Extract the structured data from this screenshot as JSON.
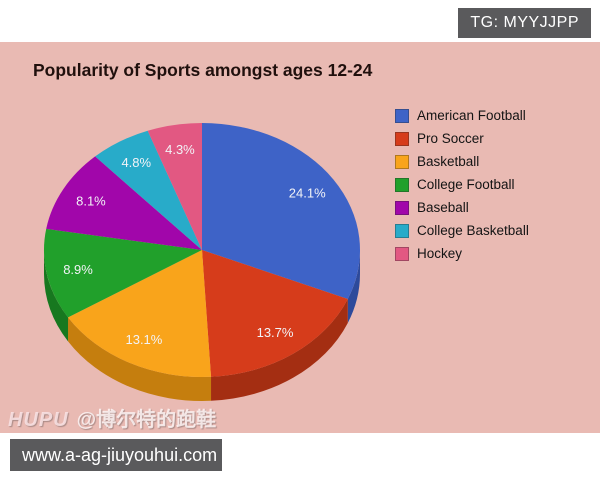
{
  "watermarks": {
    "telegram": "TG: MYYJJPP",
    "hupu_logo": "HUPU",
    "hupu_handle": "@博尔特的跑鞋",
    "site_url": "www.a-ag-jiuyouhui.com"
  },
  "colors": {
    "panel_background": "#e9bab3",
    "watermark_badge": "#5a5a5c",
    "watermark_bar": "#5a5a5c",
    "title_text": "#20100d",
    "legend_text": "#141414",
    "slice_label_text": "#f2f3f7"
  },
  "chart_data": {
    "type": "pie",
    "title": "Popularity of Sports amongst ages 12-24",
    "legend_position": "right",
    "style": "3d",
    "start_angle_deg": -90,
    "direction": "clockwise",
    "series": [
      {
        "label": "American Football",
        "value": 24.1,
        "percent_label": "24.1%",
        "color": "#3e63c7",
        "side_color": "#2d4a9b"
      },
      {
        "label": "Pro Soccer",
        "value": 13.7,
        "percent_label": "13.7%",
        "color": "#d63c1b",
        "side_color": "#a42e12"
      },
      {
        "label": "Basketball",
        "value": 13.1,
        "percent_label": "13.1%",
        "color": "#f9a41b",
        "side_color": "#c57e0e"
      },
      {
        "label": "College Football",
        "value": 8.9,
        "percent_label": "8.9%",
        "color": "#21a02b",
        "side_color": "#17781f"
      },
      {
        "label": "Baseball",
        "value": 8.1,
        "percent_label": "8.1%",
        "color": "#a106aa",
        "side_color": "#790880"
      },
      {
        "label": "College Basketball",
        "value": 4.8,
        "percent_label": "4.8%",
        "color": "#28abc9",
        "side_color": "#1e8096"
      },
      {
        "label": "Hockey",
        "value": 4.3,
        "percent_label": "4.3%",
        "color": "#e25882",
        "side_color": "#aa4263"
      }
    ]
  }
}
